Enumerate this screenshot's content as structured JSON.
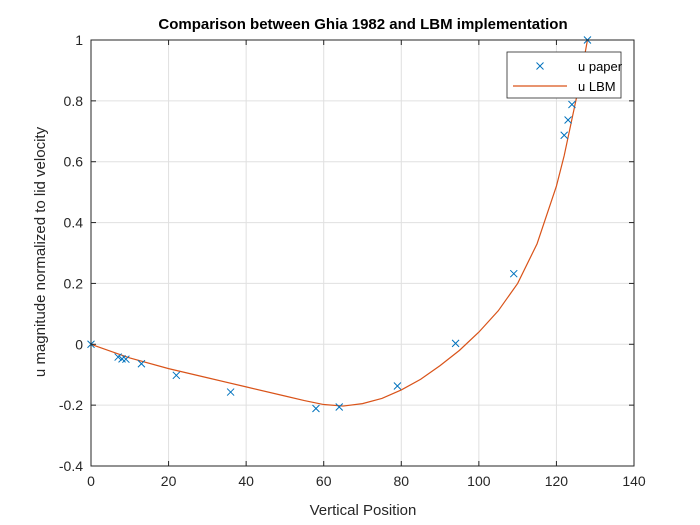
{
  "colors": {
    "background": "#ffffff",
    "axes_box": "#262626",
    "grid": "#e0e0e0",
    "series_paper": "#0072BD",
    "series_lbm": "#D95319"
  },
  "chart_data": {
    "type": "line",
    "title": "Comparison between Ghia 1982 and LBM implementation",
    "xlabel": "Vertical Position",
    "ylabel": "u magnitude normalized to lid velocity",
    "xlim": [
      0,
      140
    ],
    "ylim": [
      -0.4,
      1
    ],
    "xticks": [
      0,
      20,
      40,
      60,
      80,
      100,
      120,
      140
    ],
    "yticks": [
      -0.4,
      -0.2,
      0,
      0.2,
      0.4,
      0.6,
      0.8,
      1
    ],
    "grid": true,
    "legend_position": "top-right",
    "series": [
      {
        "name": "u paper",
        "style": "markers",
        "marker": "x",
        "x": [
          0,
          7,
          8,
          9,
          13,
          22,
          36,
          58,
          64,
          79,
          94,
          109,
          122,
          123,
          124,
          128
        ],
        "y": [
          0,
          -0.042,
          -0.048,
          -0.049,
          -0.064,
          -0.102,
          -0.157,
          -0.211,
          -0.206,
          -0.137,
          0.003,
          0.232,
          0.687,
          0.737,
          0.788,
          1.0
        ]
      },
      {
        "name": "u LBM",
        "style": "line",
        "x": [
          0,
          10,
          20,
          30,
          40,
          50,
          55,
          60,
          65,
          70,
          75,
          80,
          85,
          90,
          95,
          100,
          105,
          110,
          115,
          120,
          122,
          124,
          126,
          127,
          128
        ],
        "y": [
          0,
          -0.045,
          -0.08,
          -0.11,
          -0.14,
          -0.17,
          -0.185,
          -0.198,
          -0.203,
          -0.195,
          -0.178,
          -0.15,
          -0.115,
          -0.07,
          -0.02,
          0.04,
          0.11,
          0.2,
          0.33,
          0.52,
          0.62,
          0.74,
          0.86,
          0.93,
          1.0
        ]
      }
    ]
  }
}
